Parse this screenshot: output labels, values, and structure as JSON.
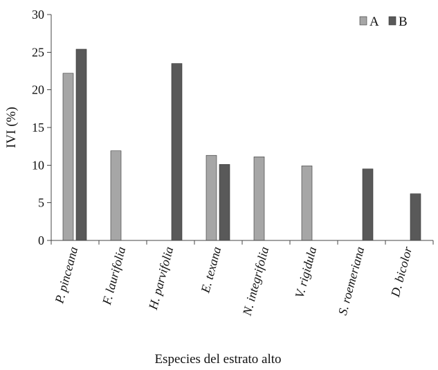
{
  "chart_data": {
    "type": "bar",
    "title": "",
    "xlabel": "Especies del estrato alto",
    "ylabel": "IVI (%)",
    "ylim": [
      0,
      30
    ],
    "yticks": [
      0,
      5,
      10,
      15,
      20,
      25,
      30
    ],
    "grid": false,
    "legend_position": "top-right",
    "categories": [
      "P. pinceana",
      "F. laurifolia",
      "H. parvifolia",
      "E. texana",
      "N. integrifolia",
      "V. rigidula",
      "S. roemeriana",
      "D. bicolor"
    ],
    "series": [
      {
        "name": "A",
        "color": "#a6a6a6",
        "values": [
          22.2,
          11.9,
          0,
          11.3,
          11.1,
          9.9,
          0,
          0
        ]
      },
      {
        "name": "B",
        "color": "#595959",
        "values": [
          25.4,
          0,
          23.5,
          10.1,
          0,
          0,
          9.5,
          6.2
        ]
      }
    ]
  }
}
